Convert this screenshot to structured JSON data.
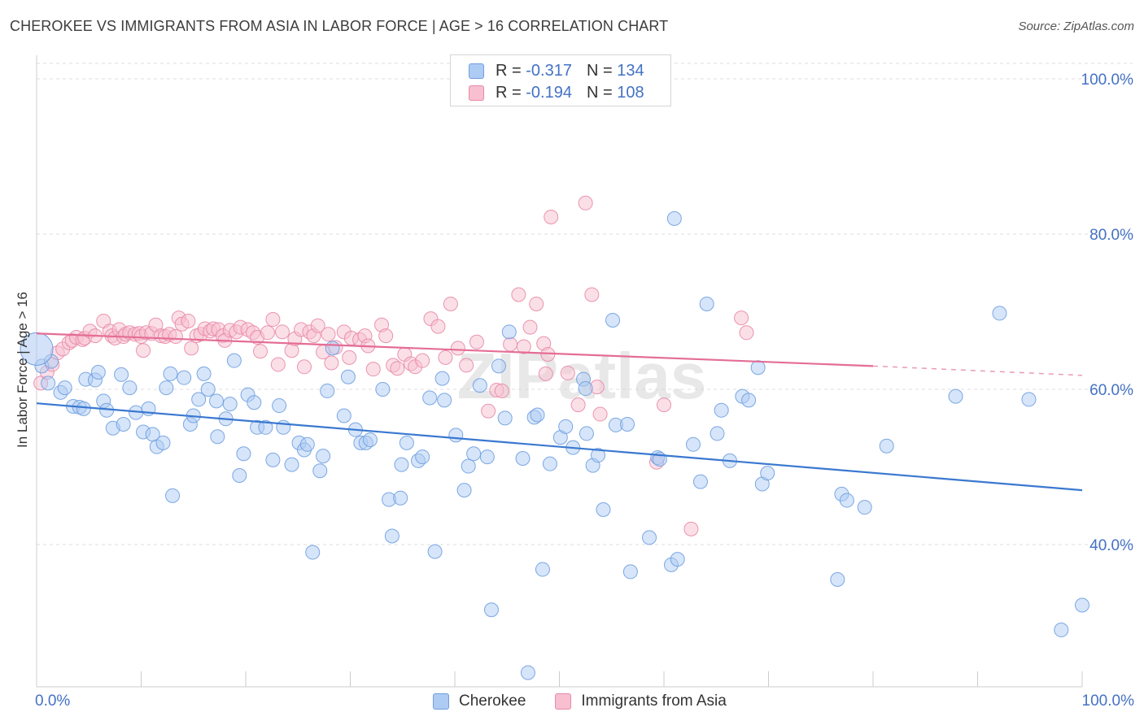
{
  "title": "CHEROKEE VS IMMIGRANTS FROM ASIA IN LABOR FORCE | AGE > 16 CORRELATION CHART",
  "source": "Source: ZipAtlas.com",
  "watermark": "ZIPatlas",
  "colors": {
    "blue_fill": "#aecbf3",
    "blue_stroke": "#6f9ee0",
    "blue_line": "#3a78d0",
    "pink_fill": "#f7bfd0",
    "pink_stroke": "#e88aa8",
    "pink_line": "#e46d96",
    "axis_text": "#4472c4",
    "grid": "#dddddd"
  },
  "legend_top": {
    "rows": [
      {
        "r_label": "R =",
        "r_value": "-0.317",
        "n_label": "N =",
        "n_value": "134"
      },
      {
        "r_label": "R =",
        "r_value": "-0.194",
        "n_label": "N =",
        "n_value": "108"
      }
    ]
  },
  "legend_bottom": [
    "Cherokee",
    "Immigrants from Asia"
  ],
  "chart_data": {
    "type": "scatter",
    "title": "CHEROKEE VS IMMIGRANTS FROM ASIA IN LABOR FORCE | AGE > 16 CORRELATION CHART",
    "xlabel": "",
    "ylabel": "In Labor Force | Age > 16",
    "xlim": [
      0,
      100
    ],
    "ylim": [
      21,
      100
    ],
    "x_tick_labels": [
      "0.0%",
      "100.0%"
    ],
    "y_ticks": [
      40,
      60,
      80,
      100
    ],
    "y_tick_labels": [
      "40.0%",
      "60.0%",
      "80.0%",
      "100.0%"
    ],
    "grid": true,
    "legend_position": "top-center",
    "series": [
      {
        "name": "Cherokee",
        "r": -0.317,
        "n": 134,
        "trend": {
          "x0": 0,
          "y0": 58.2,
          "x1": 100,
          "y1": 47.0
        },
        "points": [
          [
            0.5,
            63
          ],
          [
            1.1,
            60.8
          ],
          [
            1.4,
            63.6
          ],
          [
            2.3,
            59.6
          ],
          [
            2.7,
            60.2
          ],
          [
            3.5,
            57.8
          ],
          [
            4.1,
            57.7
          ],
          [
            4.5,
            57.5
          ],
          [
            4.7,
            61.3
          ],
          [
            5.6,
            61.2
          ],
          [
            5.9,
            62.2
          ],
          [
            6.4,
            58.5
          ],
          [
            6.7,
            57.3
          ],
          [
            7.3,
            55
          ],
          [
            8.1,
            61.9
          ],
          [
            8.3,
            55.5
          ],
          [
            8.9,
            60.2
          ],
          [
            9.5,
            57
          ],
          [
            10.2,
            54.5
          ],
          [
            10.7,
            57.5
          ],
          [
            11.1,
            54.2
          ],
          [
            11.5,
            52.6
          ],
          [
            12.1,
            53.1
          ],
          [
            12.4,
            60.2
          ],
          [
            12.8,
            62
          ],
          [
            13,
            46.3
          ],
          [
            14.1,
            61.5
          ],
          [
            14.7,
            55.5
          ],
          [
            15,
            56.6
          ],
          [
            15.5,
            58.7
          ],
          [
            16,
            62
          ],
          [
            16.4,
            60
          ],
          [
            17.2,
            58.5
          ],
          [
            17.3,
            53.9
          ],
          [
            18.1,
            56.2
          ],
          [
            18.5,
            58.1
          ],
          [
            18.9,
            63.7
          ],
          [
            19.4,
            48.9
          ],
          [
            19.8,
            51.7
          ],
          [
            20.2,
            59.3
          ],
          [
            20.8,
            58.3
          ],
          [
            21.1,
            55.1
          ],
          [
            21.9,
            55.1
          ],
          [
            22.6,
            50.9
          ],
          [
            23.2,
            57.9
          ],
          [
            23.6,
            55.1
          ],
          [
            24.4,
            50.3
          ],
          [
            25.1,
            53.1
          ],
          [
            25.6,
            52.2
          ],
          [
            25.9,
            52.9
          ],
          [
            26.4,
            39
          ],
          [
            27.1,
            49.5
          ],
          [
            27.4,
            51.4
          ],
          [
            27.8,
            59.8
          ],
          [
            28.3,
            65.3
          ],
          [
            29.4,
            56.6
          ],
          [
            29.8,
            61.6
          ],
          [
            30.5,
            54.8
          ],
          [
            31,
            53.1
          ],
          [
            31.5,
            53.1
          ],
          [
            31.9,
            53.5
          ],
          [
            33.1,
            60
          ],
          [
            33.7,
            45.8
          ],
          [
            34,
            41.1
          ],
          [
            34.8,
            46
          ],
          [
            34.9,
            50.3
          ],
          [
            35.4,
            53.1
          ],
          [
            36.5,
            50.8
          ],
          [
            36.9,
            51.3
          ],
          [
            37.6,
            58.9
          ],
          [
            38.1,
            39.1
          ],
          [
            38.8,
            61.4
          ],
          [
            39,
            58.6
          ],
          [
            40.1,
            54.1
          ],
          [
            40.9,
            47
          ],
          [
            41.3,
            50.1
          ],
          [
            41.8,
            51.7
          ],
          [
            42.4,
            60.5
          ],
          [
            43.1,
            51.3
          ],
          [
            43.5,
            31.6
          ],
          [
            44.2,
            63
          ],
          [
            44.8,
            56.3
          ],
          [
            45.2,
            67.4
          ],
          [
            46.5,
            51.1
          ],
          [
            47,
            23.5
          ],
          [
            47.6,
            56.4
          ],
          [
            47.9,
            56.7
          ],
          [
            48.4,
            36.8
          ],
          [
            49.1,
            50.4
          ],
          [
            50.1,
            53.8
          ],
          [
            50.6,
            55.2
          ],
          [
            51.3,
            52.5
          ],
          [
            52.3,
            61.3
          ],
          [
            52.5,
            60.1
          ],
          [
            52.6,
            54.3
          ],
          [
            53.2,
            50.2
          ],
          [
            53.7,
            51.5
          ],
          [
            54.2,
            44.5
          ],
          [
            55.4,
            55.4
          ],
          [
            56.5,
            55.5
          ],
          [
            55.1,
            68.9
          ],
          [
            56.8,
            36.5
          ],
          [
            58.6,
            40.9
          ],
          [
            59.4,
            51.2
          ],
          [
            59.6,
            51
          ],
          [
            60.7,
            37.4
          ],
          [
            61,
            82
          ],
          [
            61.3,
            38.1
          ],
          [
            62.8,
            52.9
          ],
          [
            63.5,
            48.1
          ],
          [
            64.1,
            71
          ],
          [
            65.1,
            54.3
          ],
          [
            65.5,
            57.3
          ],
          [
            66.3,
            50.8
          ],
          [
            67.5,
            59.1
          ],
          [
            68.1,
            58.6
          ],
          [
            69,
            62.8
          ],
          [
            69.4,
            47.8
          ],
          [
            69.9,
            49.2
          ],
          [
            76.6,
            35.5
          ],
          [
            77,
            46.5
          ],
          [
            77.5,
            45.7
          ],
          [
            79.2,
            44.8
          ],
          [
            81.3,
            52.7
          ],
          [
            87.9,
            59.1
          ],
          [
            92.1,
            69.8
          ],
          [
            94.9,
            58.7
          ],
          [
            98,
            29
          ],
          [
            100,
            32.2
          ]
        ]
      },
      {
        "name": "Immigrants from Asia",
        "r": -0.194,
        "n": 108,
        "trend": {
          "x0": 0,
          "y0": 67.2,
          "x1": 80,
          "y1": 63.0
        },
        "trend_dashed_to": {
          "x": 100,
          "y": 61.8
        },
        "points": [
          [
            0.4,
            60.8
          ],
          [
            1,
            62.2
          ],
          [
            1.5,
            63.2
          ],
          [
            2,
            64.7
          ],
          [
            2.5,
            65.2
          ],
          [
            3.1,
            66
          ],
          [
            3.4,
            66.3
          ],
          [
            3.8,
            66.7
          ],
          [
            4.4,
            66.4
          ],
          [
            4.6,
            66.6
          ],
          [
            5.1,
            67.5
          ],
          [
            5.6,
            66.9
          ],
          [
            6.4,
            68.8
          ],
          [
            7,
            67.5
          ],
          [
            7.2,
            66.9
          ],
          [
            7.5,
            66.6
          ],
          [
            7.9,
            67.7
          ],
          [
            8.3,
            66.8
          ],
          [
            8.5,
            67.1
          ],
          [
            8.9,
            67.3
          ],
          [
            9.4,
            67.1
          ],
          [
            9.8,
            67.2
          ],
          [
            10,
            66.8
          ],
          [
            10.2,
            65
          ],
          [
            10.5,
            67.3
          ],
          [
            11,
            67.2
          ],
          [
            11.4,
            68.3
          ],
          [
            11.9,
            66.9
          ],
          [
            12.3,
            66.8
          ],
          [
            12.7,
            67.1
          ],
          [
            13.3,
            66.8
          ],
          [
            13.6,
            69.2
          ],
          [
            13.9,
            68.4
          ],
          [
            14.5,
            68.8
          ],
          [
            14.8,
            65.3
          ],
          [
            15.3,
            66.9
          ],
          [
            15.7,
            67.1
          ],
          [
            16.1,
            67.8
          ],
          [
            16.6,
            67.5
          ],
          [
            16.9,
            67.8
          ],
          [
            17.4,
            67.7
          ],
          [
            17.8,
            66.9
          ],
          [
            18,
            66.3
          ],
          [
            18.5,
            67.6
          ],
          [
            19.1,
            67.4
          ],
          [
            19.5,
            68
          ],
          [
            20.2,
            67.7
          ],
          [
            20.7,
            67.3
          ],
          [
            21.1,
            66.7
          ],
          [
            21.4,
            64.9
          ],
          [
            22.1,
            67.3
          ],
          [
            22.6,
            69
          ],
          [
            23.1,
            63.2
          ],
          [
            23.5,
            67.4
          ],
          [
            24.4,
            65
          ],
          [
            24.7,
            66.5
          ],
          [
            25.3,
            67.7
          ],
          [
            25.6,
            62.9
          ],
          [
            26.1,
            67.4
          ],
          [
            26.5,
            66.9
          ],
          [
            26.9,
            68.2
          ],
          [
            27.4,
            64.8
          ],
          [
            27.9,
            67.1
          ],
          [
            28.2,
            63.4
          ],
          [
            28.6,
            65.4
          ],
          [
            29.4,
            67.4
          ],
          [
            29.9,
            64.1
          ],
          [
            30.1,
            66.6
          ],
          [
            30.9,
            66.4
          ],
          [
            31.4,
            66.9
          ],
          [
            31.7,
            65.6
          ],
          [
            32.2,
            62.6
          ],
          [
            33,
            68.3
          ],
          [
            33.4,
            66.9
          ],
          [
            34.1,
            63.1
          ],
          [
            34.5,
            62.7
          ],
          [
            35.2,
            64.5
          ],
          [
            35.8,
            63.3
          ],
          [
            36.2,
            62.9
          ],
          [
            36.9,
            63.7
          ],
          [
            37.7,
            69.1
          ],
          [
            38.4,
            68.1
          ],
          [
            39.1,
            64.1
          ],
          [
            39.6,
            71
          ],
          [
            40.3,
            65.3
          ],
          [
            41.1,
            63.1
          ],
          [
            42.1,
            66.1
          ],
          [
            43.2,
            57.2
          ],
          [
            44,
            59.9
          ],
          [
            44.5,
            59.8
          ],
          [
            45.3,
            65.8
          ],
          [
            46.1,
            72.2
          ],
          [
            46.6,
            65.5
          ],
          [
            47.2,
            68
          ],
          [
            47.8,
            71
          ],
          [
            48.5,
            65.9
          ],
          [
            48.7,
            62
          ],
          [
            48.9,
            64.5
          ],
          [
            49.2,
            82.2
          ],
          [
            50.8,
            62.1
          ],
          [
            51.8,
            58
          ],
          [
            52.5,
            84
          ],
          [
            53.1,
            72.2
          ],
          [
            53.6,
            60.3
          ],
          [
            53.9,
            56.8
          ],
          [
            60,
            58
          ],
          [
            59.3,
            50.6
          ],
          [
            62.6,
            42
          ],
          [
            67.4,
            69.2
          ],
          [
            67.9,
            67.3
          ]
        ]
      }
    ]
  }
}
